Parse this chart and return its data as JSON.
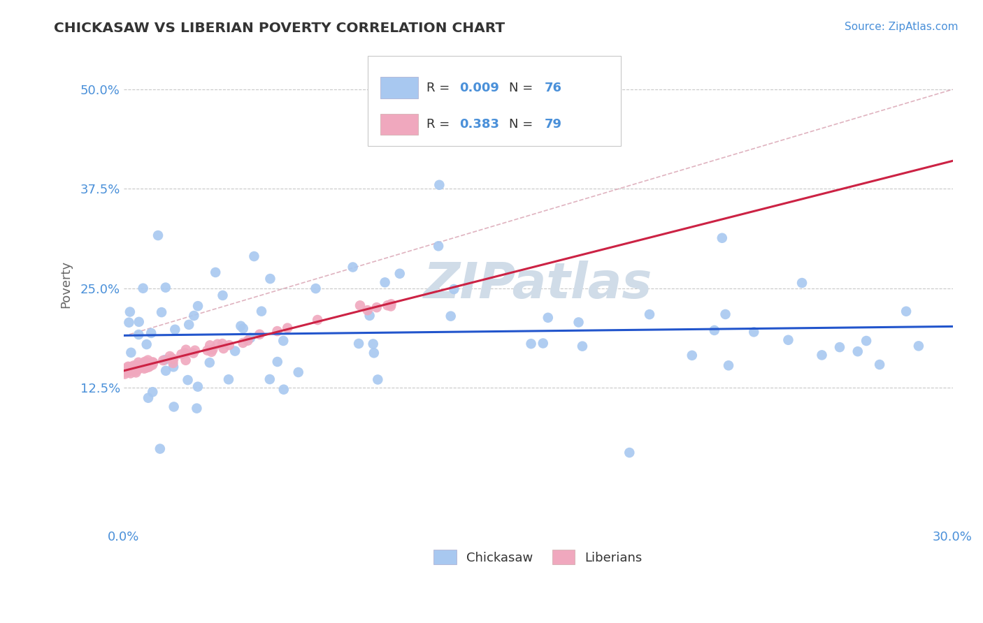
{
  "title": "CHICKASAW VS LIBERIAN POVERTY CORRELATION CHART",
  "source": "Source: ZipAtlas.com",
  "tick_color": "#4a90d9",
  "ylabel": "Poverty",
  "xlim": [
    0.0,
    0.3
  ],
  "ylim": [
    -0.05,
    0.56
  ],
  "xtick_positions": [
    0.0,
    0.3
  ],
  "xtick_labels": [
    "0.0%",
    "30.0%"
  ],
  "ytick_positions": [
    0.125,
    0.25,
    0.375,
    0.5
  ],
  "ytick_labels": [
    "12.5%",
    "25.0%",
    "37.5%",
    "50.0%"
  ],
  "grid_color": "#c8c8c8",
  "background_color": "#ffffff",
  "chickasaw_color": "#a8c8f0",
  "liberian_color": "#f0a8be",
  "chickasaw_edge": "none",
  "liberian_edge": "none",
  "chickasaw_R": 0.009,
  "chickasaw_N": 76,
  "liberian_R": 0.383,
  "liberian_N": 79,
  "trend_blue": "#2255cc",
  "trend_pink": "#cc2244",
  "trend_dashed_color": "#d8a0b0",
  "watermark_text": "ZIPatlas",
  "watermark_color": "#d0dce8",
  "legend_text_color": "#333333",
  "legend_value_color": "#4a90d9",
  "source_color": "#4a90d9",
  "title_color": "#333333",
  "ylabel_color": "#666666"
}
